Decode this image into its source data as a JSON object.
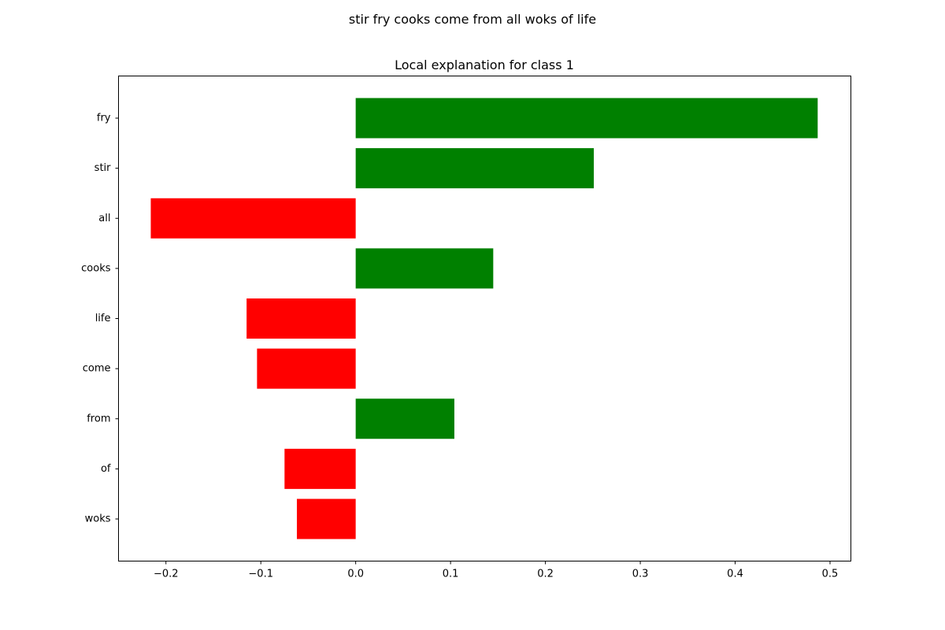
{
  "figure": {
    "suptitle": "stir fry cooks come from all woks of life"
  },
  "chart_data": {
    "type": "bar",
    "orientation": "horizontal",
    "title": "Local explanation for class 1",
    "xlabel": "",
    "ylabel": "",
    "categories": [
      "fry",
      "stir",
      "all",
      "cooks",
      "life",
      "come",
      "from",
      "of",
      "woks"
    ],
    "values": [
      0.487,
      0.251,
      -0.216,
      0.145,
      -0.115,
      -0.104,
      0.104,
      -0.075,
      -0.062
    ],
    "positive_color": "#008000",
    "negative_color": "#ff0000",
    "xlim": [
      -0.25,
      0.522
    ],
    "xticks": [
      -0.2,
      -0.1,
      0.0,
      0.1,
      0.2,
      0.3,
      0.4,
      0.5
    ],
    "xtick_labels": [
      "−0.2",
      "−0.1",
      "0.0",
      "0.1",
      "0.2",
      "0.3",
      "0.4",
      "0.5"
    ],
    "grid": false,
    "legend": "none"
  }
}
